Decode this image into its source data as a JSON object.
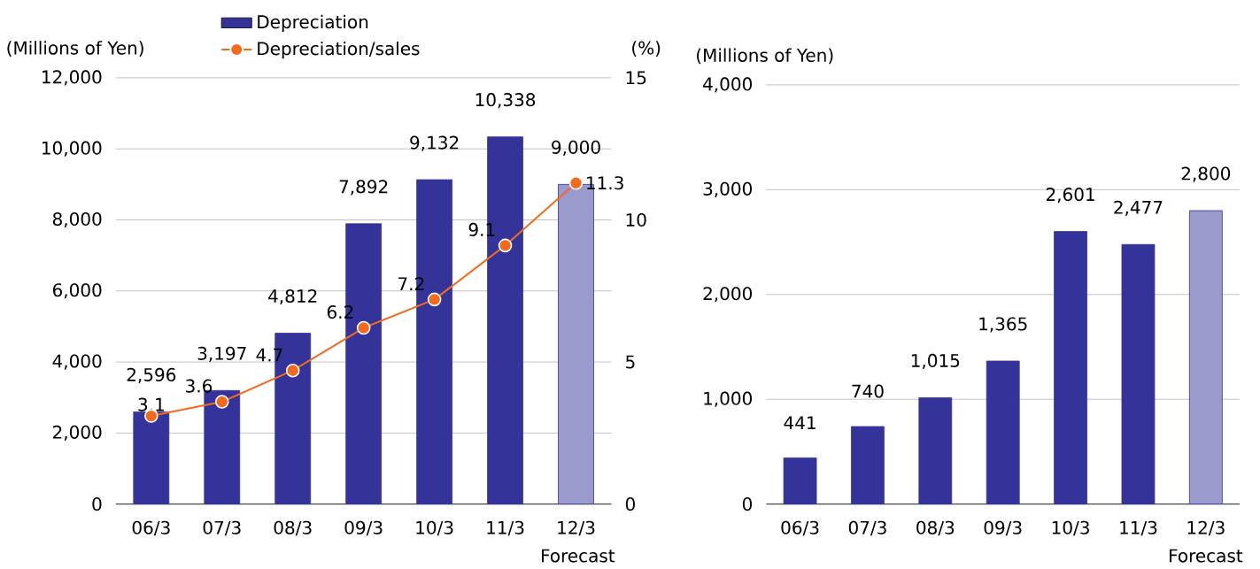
{
  "chart_data": [
    {
      "type": "bar",
      "categories": [
        "06/3",
        "07/3",
        "08/3",
        "09/3",
        "10/3",
        "11/3",
        "12/3"
      ],
      "ylabel": "(Millions of Yen)",
      "y2label": "(%)",
      "ylim": [
        0,
        12000
      ],
      "yticks": [
        {
          "value": 0,
          "label": "0"
        },
        {
          "value": 2000,
          "label": "2,000"
        },
        {
          "value": 4000,
          "label": "4,000"
        },
        {
          "value": 6000,
          "label": "6,000"
        },
        {
          "value": 8000,
          "label": "8,000"
        },
        {
          "value": 10000,
          "label": "10,000"
        },
        {
          "value": 12000,
          "label": "12,000"
        }
      ],
      "y2lim": [
        0,
        15
      ],
      "y2ticks": [
        0,
        5,
        10,
        15
      ],
      "grid": "y",
      "legend": "top",
      "marker": "circle",
      "series": [
        {
          "name": "Depreciation",
          "type": "bar",
          "color": "#333399",
          "colors": [
            "#333399",
            "#333399",
            "#333399",
            "#333399",
            "#333399",
            "#333399",
            "#9a9acc"
          ],
          "values": [
            2596,
            3197,
            4812,
            7892,
            9132,
            10338,
            9000
          ],
          "value_labels": [
            "2,596",
            "3,197",
            "4,812",
            "7,892",
            "9,132",
            "10,338",
            "9,000"
          ]
        },
        {
          "name": "Depreciation/sales",
          "type": "line",
          "axis": "y2",
          "color": "#f26b1d",
          "values": [
            3.1,
            3.6,
            4.7,
            6.2,
            7.2,
            9.1,
            11.3
          ],
          "value_labels": [
            "3.1",
            "3.6",
            "4.7",
            "6.2",
            "7.2",
            "9.1",
            "11.3"
          ]
        }
      ],
      "annotations": [
        "Forecast"
      ]
    },
    {
      "type": "bar",
      "categories": [
        "06/3",
        "07/3",
        "08/3",
        "09/3",
        "10/3",
        "11/3",
        "12/3"
      ],
      "ylabel": "(Millions of Yen)",
      "ylim": [
        0,
        4000
      ],
      "yticks": [
        {
          "value": 0,
          "label": "0"
        },
        {
          "value": 1000,
          "label": "1,000"
        },
        {
          "value": 2000,
          "label": "2,000"
        },
        {
          "value": 3000,
          "label": "3,000"
        },
        {
          "value": 4000,
          "label": "4,000"
        }
      ],
      "grid": "y",
      "series": [
        {
          "color": "#333399",
          "colors": [
            "#333399",
            "#333399",
            "#333399",
            "#333399",
            "#333399",
            "#333399",
            "#9a9acc"
          ],
          "values": [
            441,
            740,
            1015,
            1365,
            2601,
            2477,
            2800
          ],
          "value_labels": [
            "441",
            "740",
            "1,015",
            "1,365",
            "2,601",
            "2,477",
            "2,800"
          ]
        }
      ],
      "annotations": [
        "Forecast"
      ]
    }
  ]
}
